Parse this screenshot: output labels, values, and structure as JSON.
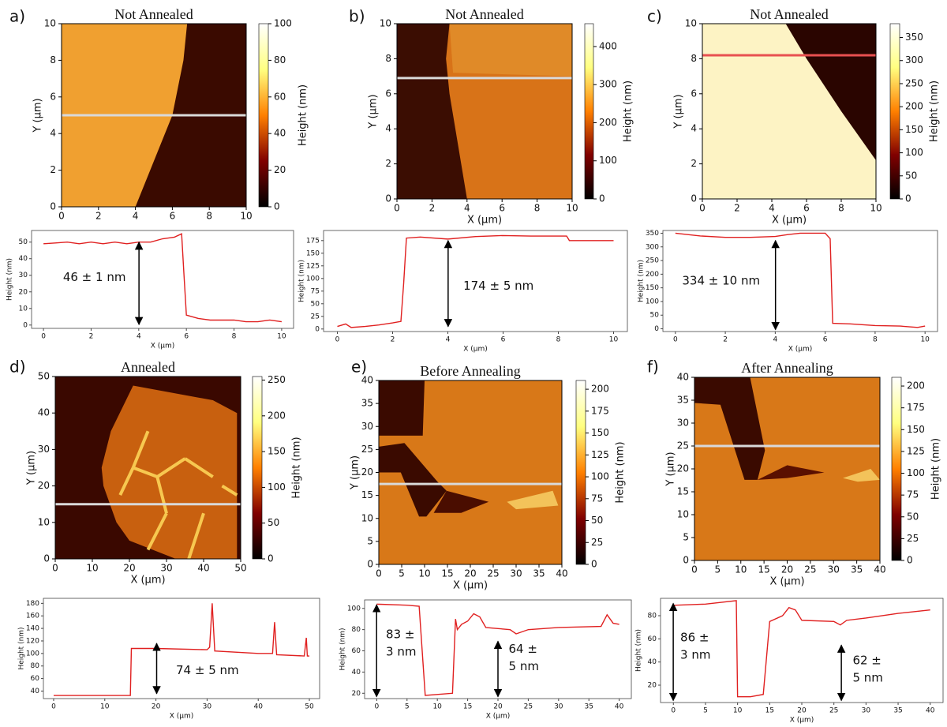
{
  "chart_data": [
    {
      "type": "image",
      "label": "a)",
      "title": "Not Annealed",
      "ylabel": "Y (μm)",
      "xlim": [
        0,
        10
      ],
      "ylim": [
        0,
        10
      ],
      "xticks": [
        0,
        2,
        4,
        6,
        8,
        10
      ],
      "yticks": [
        0,
        2,
        4,
        6,
        8,
        10
      ],
      "colormap": "afmhot",
      "colorbar": {
        "label": "Height (nm)",
        "lim": [
          0,
          100
        ],
        "ticks": [
          0,
          20,
          40,
          60,
          80,
          100
        ]
      },
      "profile_y": 5,
      "profile_color": "#d9d9d9"
    },
    {
      "type": "line",
      "xlabel": "X (μm)",
      "ylabel": "Height (nm)",
      "x": [
        0,
        0.5,
        1,
        1.5,
        2,
        2.5,
        3,
        3.5,
        4,
        4.5,
        5,
        5.5,
        5.8,
        5.9,
        6,
        6.5,
        7,
        7.5,
        8,
        8.5,
        9,
        9.5,
        10
      ],
      "values": [
        49,
        49.5,
        50,
        49,
        50,
        49,
        50,
        49,
        50,
        50,
        52,
        53,
        55,
        30,
        6,
        4,
        3,
        3,
        3,
        2,
        2,
        3,
        2
      ],
      "color": "#e02020",
      "xlim": [
        -0.5,
        10.5
      ],
      "ylim": [
        -2,
        57
      ],
      "xticks": [
        0,
        2,
        4,
        6,
        8,
        10
      ],
      "yticks": [
        0,
        10,
        20,
        30,
        40,
        50
      ],
      "annotations": [
        [
          "46 ± 1 nm"
        ]
      ]
    },
    {
      "type": "image",
      "label": "b)",
      "title": "Not Annealed",
      "xlabel": "X (μm)",
      "ylabel": "Y (μm)",
      "xlim": [
        0,
        10
      ],
      "ylim": [
        0,
        10
      ],
      "xticks": [
        0,
        2,
        4,
        6,
        8,
        10
      ],
      "yticks": [
        0,
        2,
        4,
        6,
        8,
        10
      ],
      "colormap": "afmhot",
      "colorbar": {
        "label": "Height (nm)",
        "lim": [
          0,
          460
        ],
        "ticks": [
          0,
          100,
          200,
          300,
          400
        ]
      },
      "profile_y": 6.9,
      "profile_color": "#d9d9d9"
    },
    {
      "type": "line",
      "xlabel": "X (μm)",
      "ylabel": "Height (nm)",
      "x": [
        0,
        0.3,
        0.5,
        1,
        1.5,
        2,
        2.3,
        2.4,
        2.5,
        3,
        4,
        5,
        6,
        7,
        8.3,
        8.4,
        10
      ],
      "values": [
        5,
        10,
        3,
        5,
        8,
        12,
        15,
        90,
        180,
        182,
        178,
        183,
        185,
        184,
        184,
        175,
        175
      ],
      "color": "#e02020",
      "xlim": [
        -0.5,
        10.5
      ],
      "ylim": [
        -5,
        195
      ],
      "xticks": [
        0,
        2,
        4,
        6,
        8,
        10
      ],
      "yticks": [
        0,
        25,
        50,
        75,
        100,
        125,
        150,
        175
      ],
      "annotations": [
        [
          "174 ± 5 nm"
        ]
      ]
    },
    {
      "type": "image",
      "label": "c)",
      "title": "Not Annealed",
      "xlabel": "X (μm)",
      "ylabel": "Y (μm)",
      "xlim": [
        0,
        10
      ],
      "ylim": [
        0,
        10
      ],
      "xticks": [
        0,
        2,
        4,
        6,
        8,
        10
      ],
      "yticks": [
        0,
        2,
        4,
        6,
        8,
        10
      ],
      "colormap": "afmhot",
      "colorbar": {
        "label": "Height (nm)",
        "lim": [
          0,
          380
        ],
        "ticks": [
          0,
          50,
          100,
          150,
          200,
          250,
          300,
          350
        ]
      },
      "profile_y": 8.2,
      "profile_color": "#e85050"
    },
    {
      "type": "line",
      "xlabel": "X (μm)",
      "ylabel": "Height (nm)",
      "x": [
        0,
        1,
        2,
        3,
        4,
        4.5,
        5,
        6,
        6.2,
        6.3,
        7,
        8,
        9,
        9.7,
        10
      ],
      "values": [
        350,
        340,
        335,
        335,
        338,
        345,
        350,
        350,
        330,
        20,
        18,
        12,
        10,
        5,
        10
      ],
      "color": "#e02020",
      "xlim": [
        -0.5,
        10.5
      ],
      "ylim": [
        -10,
        360
      ],
      "xticks": [
        0,
        2,
        4,
        6,
        8,
        10
      ],
      "yticks": [
        0,
        50,
        100,
        150,
        200,
        250,
        300,
        350
      ],
      "annotations": [
        [
          "334 ± 10 nm"
        ]
      ]
    },
    {
      "type": "image",
      "label": "d)",
      "title": "Annealed",
      "xlabel": "X (μm)",
      "ylabel": "Y (μm)",
      "xlim": [
        0,
        50
      ],
      "ylim": [
        0,
        50
      ],
      "xticks": [
        0,
        10,
        20,
        30,
        40,
        50
      ],
      "yticks": [
        0,
        10,
        20,
        30,
        40,
        50
      ],
      "colormap": "afmhot",
      "colorbar": {
        "label": "Height (nm)",
        "lim": [
          0,
          255
        ],
        "ticks": [
          0,
          50,
          100,
          150,
          200,
          250
        ]
      },
      "profile_y": 15,
      "profile_color": "#d9d9d9"
    },
    {
      "type": "line",
      "xlabel": "X (μm)",
      "ylabel": "Height (nm)",
      "x": [
        0,
        10,
        15,
        15.2,
        20,
        30,
        30.5,
        31,
        31.5,
        40,
        42.8,
        43.2,
        43.6,
        49,
        49.4,
        49.6,
        50
      ],
      "values": [
        33,
        33,
        33,
        108,
        108,
        106,
        110,
        180,
        104,
        100,
        100,
        150,
        98,
        96,
        125,
        96,
        96
      ],
      "color": "#e02020",
      "xlim": [
        -2,
        52
      ],
      "ylim": [
        28,
        188
      ],
      "xticks": [
        0,
        10,
        20,
        30,
        40,
        50
      ],
      "yticks": [
        40,
        60,
        80,
        100,
        120,
        140,
        160,
        180
      ],
      "annotations": [
        [
          "74 ± 5 nm"
        ]
      ]
    },
    {
      "type": "image",
      "label": "e)",
      "title": "Before Annealing",
      "xlabel": "X (μm)",
      "ylabel": "Y (μm)",
      "xlim": [
        0,
        40
      ],
      "ylim": [
        0,
        40
      ],
      "xticks": [
        0,
        5,
        10,
        15,
        20,
        25,
        30,
        35,
        40
      ],
      "yticks": [
        0,
        5,
        10,
        15,
        20,
        25,
        30,
        35,
        40
      ],
      "colormap": "afmhot",
      "colorbar": {
        "label": "Height (nm)",
        "lim": [
          0,
          210
        ],
        "ticks": [
          0,
          25,
          50,
          75,
          100,
          125,
          150,
          175,
          200
        ]
      },
      "profile_y": 17.5,
      "profile_color": "#d9d9d9"
    },
    {
      "type": "line",
      "xlabel": "X (μm)",
      "ylabel": "Height (nm)",
      "x": [
        0,
        5,
        7,
        8,
        12.5,
        13,
        13.3,
        14,
        15,
        16,
        17,
        18,
        20,
        22,
        23,
        25,
        30,
        37,
        38,
        39,
        40
      ],
      "values": [
        104,
        103,
        102,
        18,
        20,
        90,
        80,
        85,
        88,
        95,
        92,
        82,
        81,
        80,
        76,
        80,
        82,
        83,
        94,
        86,
        85
      ],
      "color": "#e02020",
      "xlim": [
        -2,
        42
      ],
      "ylim": [
        15,
        108
      ],
      "xticks": [
        0,
        5,
        10,
        15,
        20,
        25,
        30,
        35,
        40
      ],
      "yticks": [
        20,
        40,
        60,
        80,
        100
      ],
      "annotations": [
        [
          "83 ±",
          "3 nm"
        ],
        [
          "64 ±",
          "5 nm"
        ]
      ]
    },
    {
      "type": "image",
      "label": "f)",
      "title": "After Annealing",
      "xlabel": "X (μm)",
      "ylabel": "Y (μm)",
      "xlim": [
        0,
        40
      ],
      "ylim": [
        0,
        40
      ],
      "xticks": [
        0,
        5,
        10,
        15,
        20,
        25,
        30,
        35,
        40
      ],
      "yticks": [
        0,
        5,
        10,
        15,
        20,
        25,
        30,
        35,
        40
      ],
      "colormap": "afmhot",
      "colorbar": {
        "label": "Height (nm)",
        "lim": [
          0,
          210
        ],
        "ticks": [
          0,
          25,
          50,
          75,
          100,
          125,
          150,
          175,
          200
        ]
      },
      "profile_y": 25,
      "profile_color": "#d9d9d9"
    },
    {
      "type": "line",
      "xlabel": "X (μm)",
      "ylabel": "Height (nm)",
      "x": [
        0,
        5,
        9.8,
        10,
        12,
        14,
        15,
        17,
        18,
        19,
        20,
        25,
        26,
        27,
        30,
        35,
        40
      ],
      "values": [
        89,
        90,
        93,
        10,
        10,
        12,
        75,
        80,
        87,
        85,
        76,
        75,
        72,
        76,
        78,
        82,
        85
      ],
      "color": "#e02020",
      "xlim": [
        -2,
        42
      ],
      "ylim": [
        5,
        95
      ],
      "xticks": [
        0,
        5,
        10,
        15,
        20,
        25,
        30,
        35,
        40
      ],
      "yticks": [
        20,
        40,
        60,
        80
      ],
      "annotations": [
        [
          "86 ±",
          "3 nm"
        ],
        [
          "62 ±",
          "5 nm"
        ]
      ]
    }
  ]
}
